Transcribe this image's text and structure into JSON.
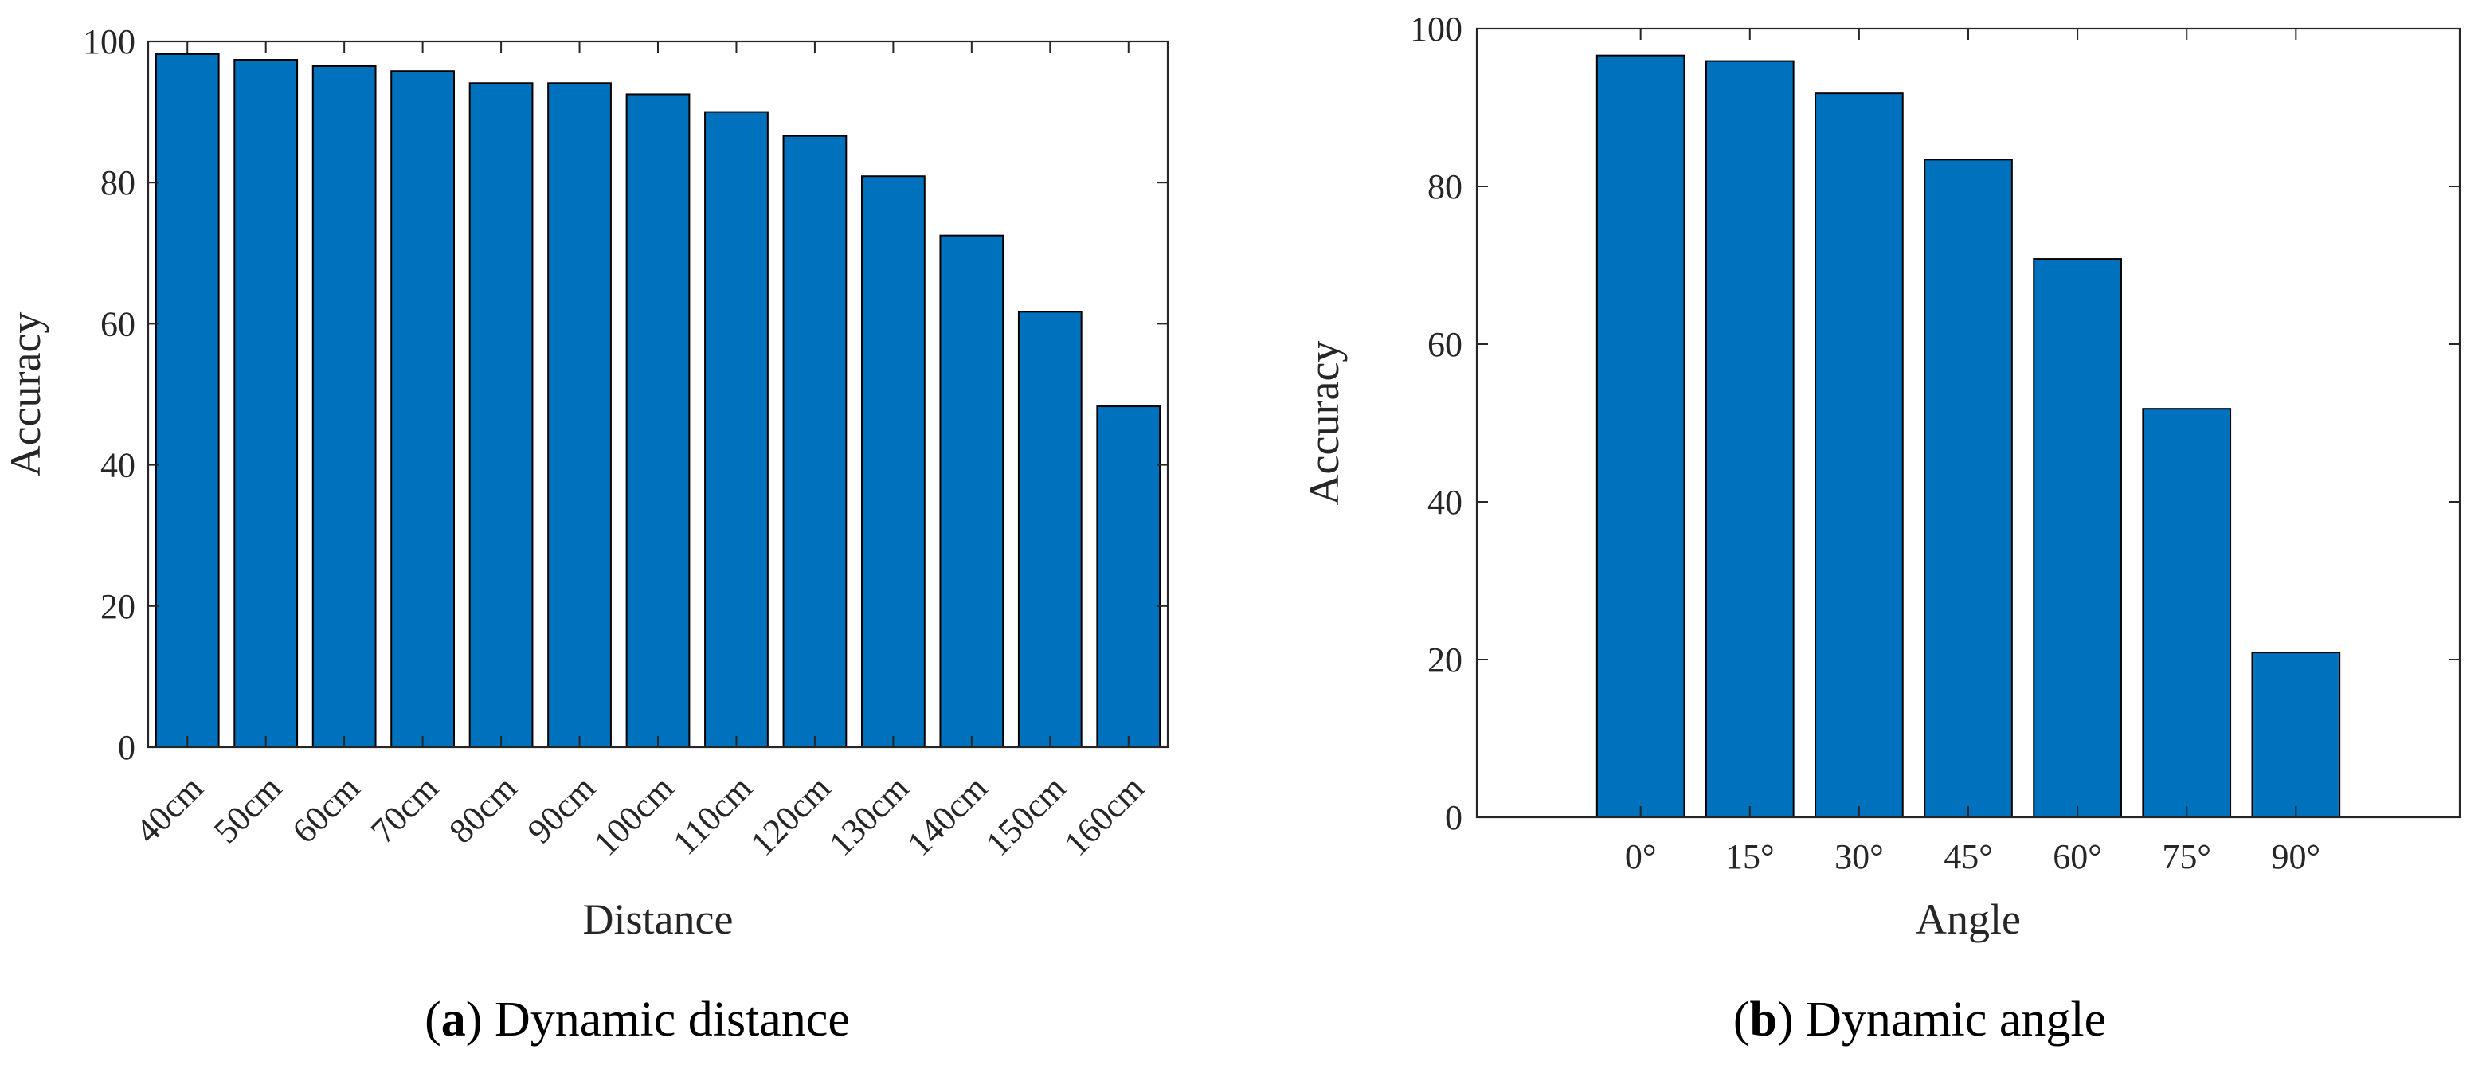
{
  "chart_data": [
    {
      "type": "bar",
      "panel": "a",
      "caption_letter": "a",
      "caption_text": "Dynamic distance",
      "xlabel": "Distance",
      "ylabel": "Accuracy",
      "ylim": [
        0,
        100
      ],
      "yticks": [
        0,
        20,
        40,
        60,
        80,
        100
      ],
      "categories": [
        "40cm",
        "50cm",
        "60cm",
        "70cm",
        "80cm",
        "90cm",
        "100cm",
        "110cm",
        "120cm",
        "130cm",
        "140cm",
        "150cm",
        "160cm"
      ],
      "values": [
        98.2,
        97.4,
        96.5,
        95.8,
        94.1,
        94.1,
        92.5,
        90.0,
        86.6,
        80.9,
        72.5,
        61.7,
        48.3
      ],
      "tick_label_rotation_deg": -45,
      "bar_color": "#0072BD"
    },
    {
      "type": "bar",
      "panel": "b",
      "caption_letter": "b",
      "caption_text": "Dynamic angle",
      "xlabel": "Angle",
      "ylabel": "Accuracy",
      "ylim": [
        0,
        100
      ],
      "yticks": [
        0,
        20,
        40,
        60,
        80,
        100
      ],
      "categories": [
        "0°",
        "15°",
        "30°",
        "45°",
        "60°",
        "75°",
        "90°"
      ],
      "values": [
        96.6,
        95.9,
        91.8,
        83.4,
        70.8,
        51.8,
        20.9
      ],
      "x_range_slots": [
        -0.5,
        8.5
      ],
      "tick_label_rotation_deg": 0,
      "bar_color": "#0072BD"
    }
  ]
}
